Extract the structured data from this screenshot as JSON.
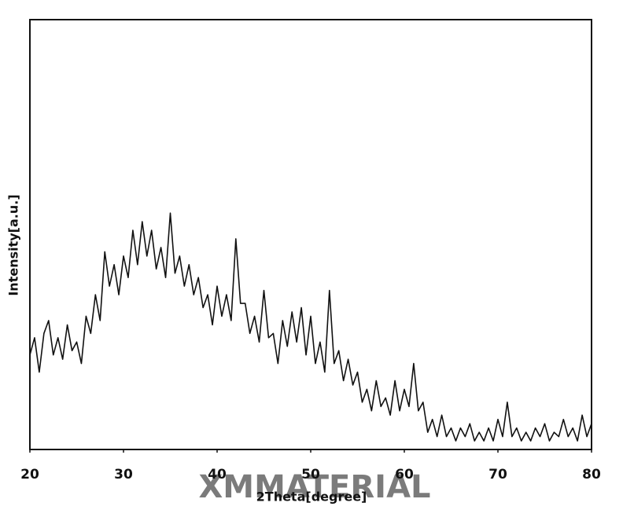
{
  "chart_data": {
    "type": "line",
    "x_label": "2Theta[degree]",
    "y_label": "Intensity[a.u.]",
    "watermark": "XMMATERIAL",
    "xlim": [
      20,
      80
    ],
    "ylim": [
      0,
      100
    ],
    "xticks": [
      20,
      30,
      40,
      50,
      60,
      70,
      80
    ],
    "color": "#111111",
    "x": [
      20,
      20.5,
      21,
      21.5,
      22,
      22.5,
      23,
      23.5,
      24,
      24.5,
      25,
      25.5,
      26,
      26.5,
      27,
      27.5,
      28,
      28.5,
      29,
      29.5,
      30,
      30.5,
      31,
      31.5,
      32,
      32.5,
      33,
      33.5,
      34,
      34.5,
      35,
      35.5,
      36,
      36.5,
      37,
      37.5,
      38,
      38.5,
      39,
      39.5,
      40,
      40.5,
      41,
      41.5,
      42,
      42.5,
      43,
      43.5,
      44,
      44.5,
      45,
      45.5,
      46,
      46.5,
      47,
      47.5,
      48,
      48.5,
      49,
      49.5,
      50,
      50.5,
      51,
      51.5,
      52,
      52.5,
      53,
      53.5,
      54,
      54.5,
      55,
      55.5,
      56,
      56.5,
      57,
      57.5,
      58,
      58.5,
      59,
      59.5,
      60,
      60.5,
      61,
      61.5,
      62,
      62.5,
      63,
      63.5,
      64,
      64.5,
      65,
      65.5,
      66,
      66.5,
      67,
      67.5,
      68,
      68.5,
      69,
      69.5,
      70,
      70.5,
      71,
      71.5,
      72,
      72.5,
      73,
      73.5,
      74,
      74.5,
      75,
      75.5,
      76,
      76.5,
      77,
      77.5,
      78,
      78.5,
      79,
      79.5,
      80
    ],
    "values": [
      22,
      26,
      18,
      27,
      30,
      22,
      26,
      21,
      29,
      23,
      25,
      20,
      31,
      27,
      36,
      30,
      46,
      38,
      43,
      36,
      45,
      40,
      51,
      43,
      53,
      45,
      51,
      42,
      47,
      40,
      55,
      41,
      45,
      38,
      43,
      36,
      40,
      33,
      36,
      29,
      38,
      31,
      36,
      30,
      49,
      34,
      34,
      27,
      31,
      25,
      37,
      26,
      27,
      20,
      30,
      24,
      32,
      25,
      33,
      22,
      31,
      20,
      25,
      18,
      37,
      20,
      23,
      16,
      21,
      15,
      18,
      11,
      14,
      9,
      16,
      10,
      12,
      8,
      16,
      9,
      14,
      10,
      20,
      9,
      11,
      4,
      7,
      3,
      8,
      3,
      5,
      2,
      5,
      3,
      6,
      2,
      4,
      2,
      5,
      2,
      7,
      3,
      11,
      3,
      5,
      2,
      4,
      2,
      5,
      3,
      6,
      2,
      4,
      3,
      7,
      3,
      5,
      2,
      8,
      3,
      6
    ]
  }
}
